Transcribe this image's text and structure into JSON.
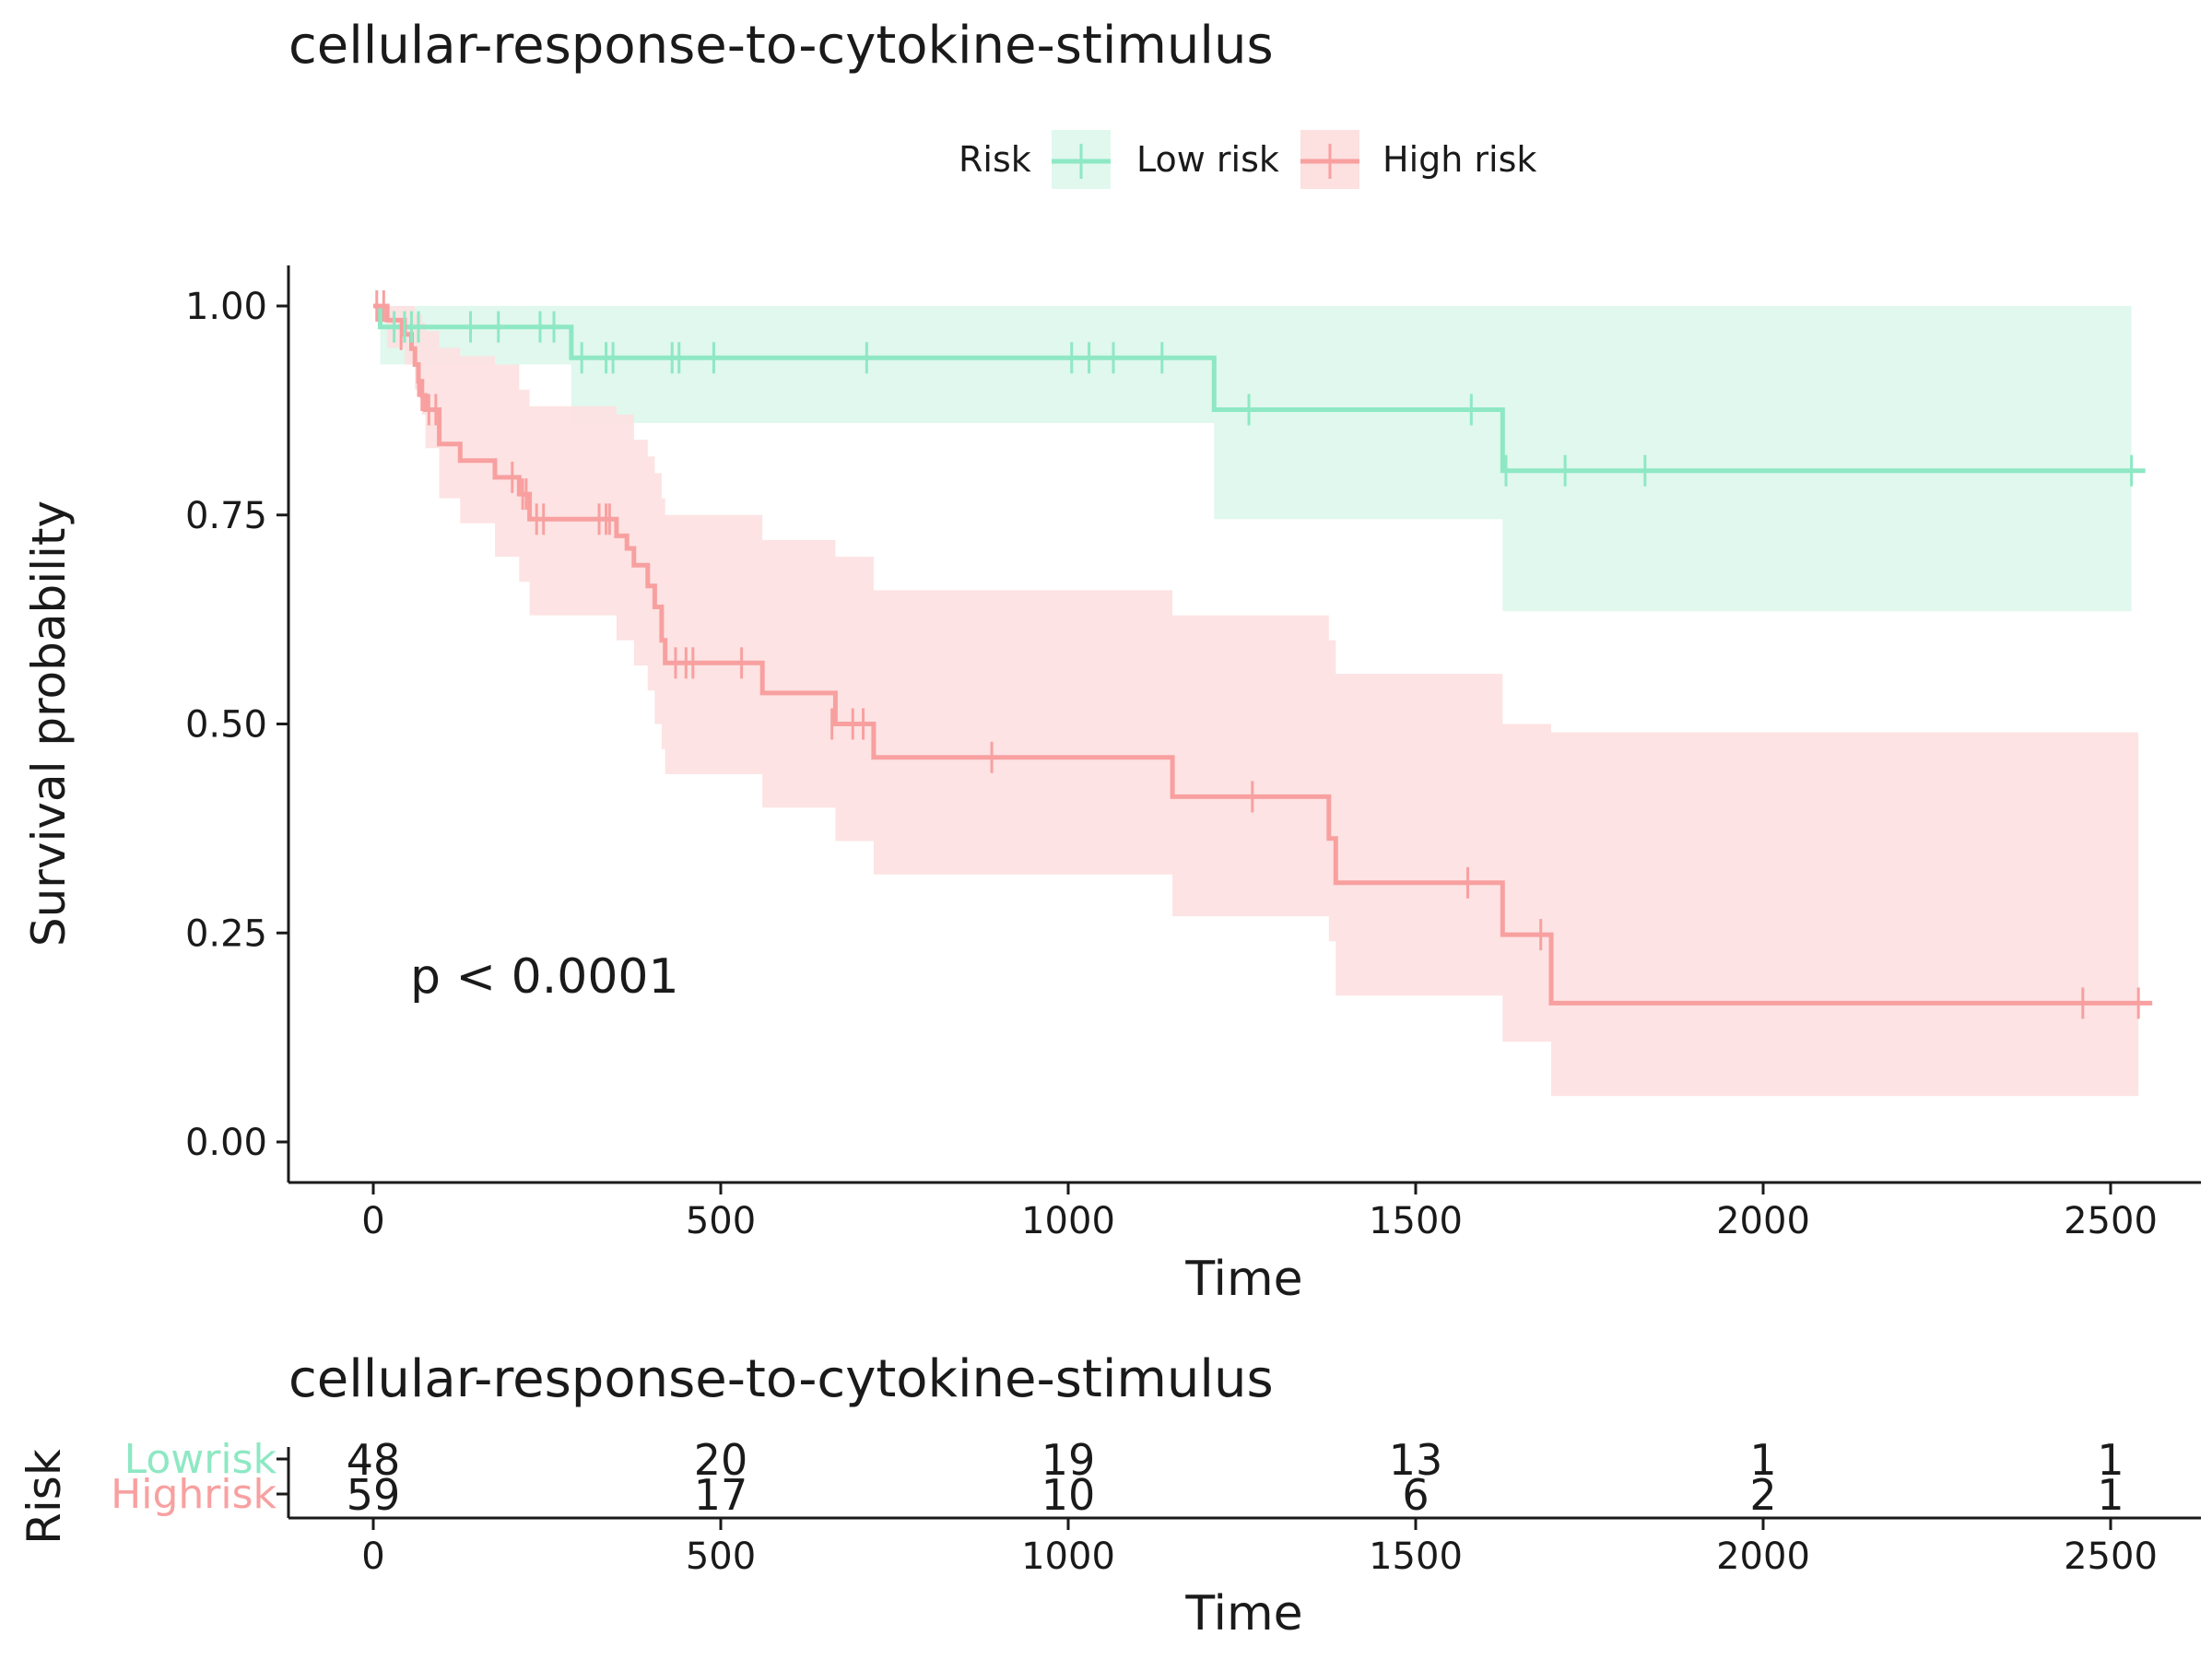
{
  "chart_data": {
    "type": "line",
    "subtype": "kaplan-meier",
    "title": "cellular-response-to-cytokine-stimulus",
    "xlabel": "Time",
    "ylabel": "Survival probability",
    "xlim": [
      -120,
      2620
    ],
    "ylim": [
      -0.05,
      1.05
    ],
    "x_ticks": [
      0,
      500,
      1000,
      1500,
      2000,
      2500
    ],
    "y_ticks": [
      0.0,
      0.25,
      0.5,
      0.75,
      1.0
    ],
    "y_tick_labels": [
      "0.00",
      "0.25",
      "0.50",
      "0.75",
      "1.00"
    ],
    "legend": {
      "title": "Risk",
      "position": "top",
      "entries": [
        {
          "name": "Low risk",
          "color": "#8ee8c4"
        },
        {
          "name": "High risk",
          "color": "#f8a0a0"
        }
      ]
    },
    "annotation": "p < 0.0001",
    "series": [
      {
        "name": "Low risk",
        "color": "#8ee8c4",
        "band_color": "#e0f8ee",
        "steps": [
          [
            0,
            1.0
          ],
          [
            10,
            0.975
          ],
          [
            285,
            0.938
          ],
          [
            1210,
            0.876
          ],
          [
            1625,
            0.803
          ],
          [
            2550,
            0.803
          ]
        ],
        "ci": [
          [
            0,
            1.0,
            1.0
          ],
          [
            10,
            1.0,
            0.93
          ],
          [
            285,
            1.0,
            0.86
          ],
          [
            1210,
            1.0,
            0.745
          ],
          [
            1625,
            1.0,
            0.635
          ],
          [
            2530,
            1.0,
            0.635
          ]
        ],
        "censors": [
          [
            30,
            0.975
          ],
          [
            45,
            0.975
          ],
          [
            55,
            0.975
          ],
          [
            65,
            0.975
          ],
          [
            140,
            0.975
          ],
          [
            180,
            0.975
          ],
          [
            240,
            0.975
          ],
          [
            260,
            0.975
          ],
          [
            300,
            0.938
          ],
          [
            335,
            0.938
          ],
          [
            345,
            0.938
          ],
          [
            430,
            0.938
          ],
          [
            440,
            0.938
          ],
          [
            490,
            0.938
          ],
          [
            710,
            0.938
          ],
          [
            1005,
            0.938
          ],
          [
            1030,
            0.938
          ],
          [
            1065,
            0.938
          ],
          [
            1135,
            0.938
          ],
          [
            1260,
            0.876
          ],
          [
            1580,
            0.876
          ],
          [
            1630,
            0.803
          ],
          [
            1715,
            0.803
          ],
          [
            1830,
            0.803
          ],
          [
            2530,
            0.803
          ]
        ]
      },
      {
        "name": "High risk",
        "color": "#f8a0a0",
        "band_color": "#fde0e0",
        "steps": [
          [
            0,
            1.0
          ],
          [
            20,
            0.983
          ],
          [
            45,
            0.966
          ],
          [
            55,
            0.949
          ],
          [
            60,
            0.93
          ],
          [
            65,
            0.91
          ],
          [
            70,
            0.893
          ],
          [
            75,
            0.876
          ],
          [
            95,
            0.835
          ],
          [
            125,
            0.815
          ],
          [
            175,
            0.795
          ],
          [
            210,
            0.775
          ],
          [
            225,
            0.745
          ],
          [
            350,
            0.725
          ],
          [
            365,
            0.71
          ],
          [
            375,
            0.69
          ],
          [
            395,
            0.665
          ],
          [
            405,
            0.64
          ],
          [
            415,
            0.6
          ],
          [
            420,
            0.573
          ],
          [
            560,
            0.537
          ],
          [
            665,
            0.5
          ],
          [
            720,
            0.46
          ],
          [
            1150,
            0.413
          ],
          [
            1375,
            0.363
          ],
          [
            1385,
            0.31
          ],
          [
            1625,
            0.248
          ],
          [
            1695,
            0.166
          ],
          [
            2560,
            0.166
          ]
        ],
        "ci": [
          [
            0,
            1.0,
            1.0
          ],
          [
            20,
            1.0,
            0.95
          ],
          [
            45,
            1.0,
            0.93
          ],
          [
            60,
            0.99,
            0.9
          ],
          [
            70,
            0.98,
            0.87
          ],
          [
            75,
            0.97,
            0.83
          ],
          [
            95,
            0.95,
            0.77
          ],
          [
            125,
            0.94,
            0.74
          ],
          [
            175,
            0.93,
            0.7
          ],
          [
            210,
            0.9,
            0.67
          ],
          [
            225,
            0.88,
            0.63
          ],
          [
            350,
            0.87,
            0.6
          ],
          [
            375,
            0.84,
            0.57
          ],
          [
            395,
            0.82,
            0.54
          ],
          [
            405,
            0.8,
            0.5
          ],
          [
            415,
            0.77,
            0.47
          ],
          [
            420,
            0.75,
            0.44
          ],
          [
            560,
            0.72,
            0.4
          ],
          [
            665,
            0.7,
            0.36
          ],
          [
            720,
            0.66,
            0.32
          ],
          [
            1150,
            0.63,
            0.27
          ],
          [
            1375,
            0.6,
            0.24
          ],
          [
            1385,
            0.56,
            0.175
          ],
          [
            1625,
            0.5,
            0.12
          ],
          [
            1695,
            0.49,
            0.055
          ],
          [
            2540,
            0.49,
            0.055
          ]
        ],
        "censors": [
          [
            5,
            1.0
          ],
          [
            15,
            1.0
          ],
          [
            40,
            0.966
          ],
          [
            65,
            0.91
          ],
          [
            70,
            0.893
          ],
          [
            80,
            0.876
          ],
          [
            90,
            0.876
          ],
          [
            200,
            0.795
          ],
          [
            215,
            0.775
          ],
          [
            220,
            0.775
          ],
          [
            235,
            0.745
          ],
          [
            245,
            0.745
          ],
          [
            325,
            0.745
          ],
          [
            335,
            0.745
          ],
          [
            340,
            0.745
          ],
          [
            435,
            0.573
          ],
          [
            450,
            0.573
          ],
          [
            460,
            0.573
          ],
          [
            530,
            0.573
          ],
          [
            660,
            0.5
          ],
          [
            690,
            0.5
          ],
          [
            705,
            0.5
          ],
          [
            890,
            0.46
          ],
          [
            1265,
            0.413
          ],
          [
            1575,
            0.31
          ],
          [
            1680,
            0.248
          ],
          [
            2460,
            0.166
          ],
          [
            2540,
            0.166
          ]
        ]
      }
    ]
  },
  "risk_table": {
    "title": "cellular-response-to-cytokine-stimulus",
    "ylabel": "Risk",
    "xlabel": "Time",
    "times": [
      0,
      500,
      1000,
      1500,
      2000,
      2500
    ],
    "rows": [
      {
        "label": "Lowrisk",
        "color": "#8ee8c4",
        "counts": [
          "48",
          "20",
          "19",
          "13",
          "1",
          "1"
        ]
      },
      {
        "label": "Highrisk",
        "color": "#f8a0a0",
        "counts": [
          "59",
          "17",
          "10",
          "6",
          "2",
          "1"
        ]
      }
    ]
  }
}
